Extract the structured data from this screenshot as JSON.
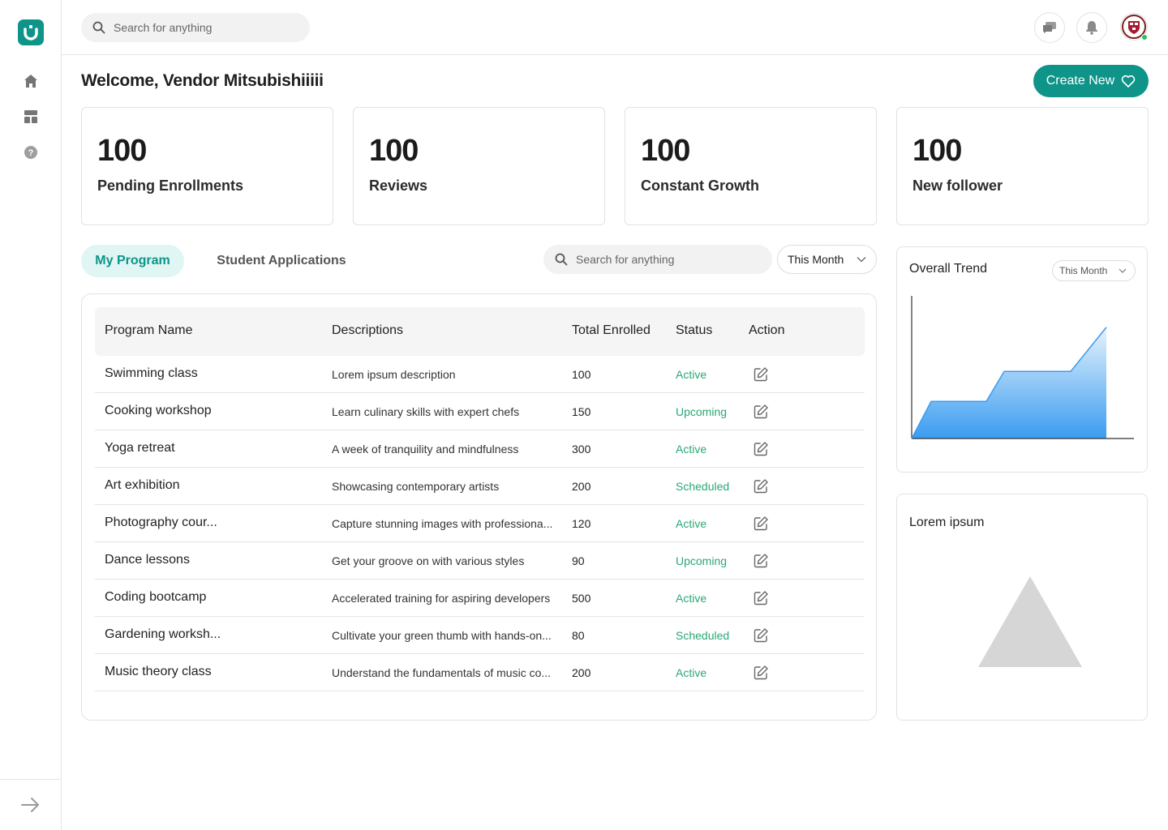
{
  "header": {
    "search_placeholder": "Search for anything"
  },
  "welcome": "Welcome, Vendor Mitsubishiiiii",
  "create_button": "Create New",
  "stats": [
    {
      "value": "100",
      "label": "Pending Enrollments"
    },
    {
      "value": "100",
      "label": "Reviews"
    },
    {
      "value": "100",
      "label": "Constant Growth"
    },
    {
      "value": "100",
      "label": "New follower"
    }
  ],
  "tabs": {
    "active": "My Program",
    "other": "Student Applications"
  },
  "filter": {
    "search_placeholder": "Search for anything",
    "period": "This Month"
  },
  "table": {
    "headers": [
      "Program Name",
      "Descriptions",
      "Total Enrolled",
      "Status",
      "Action"
    ],
    "rows": [
      {
        "name": "Swimming class",
        "desc": "Lorem ipsum description",
        "total": "100",
        "status": "Active"
      },
      {
        "name": "Cooking workshop",
        "desc": "Learn culinary skills with expert chefs",
        "total": "150",
        "status": "Upcoming"
      },
      {
        "name": "Yoga retreat",
        "desc": "A week of tranquility and mindfulness",
        "total": "300",
        "status": "Active"
      },
      {
        "name": "Art exhibition",
        "desc": "Showcasing contemporary artists",
        "total": "200",
        "status": "Scheduled"
      },
      {
        "name": "Photography cour...",
        "desc": "Capture stunning images with professiona...",
        "total": "120",
        "status": "Active"
      },
      {
        "name": "Dance lessons",
        "desc": "Get your groove on with various styles",
        "total": "90",
        "status": "Upcoming"
      },
      {
        "name": "Coding bootcamp",
        "desc": "Accelerated training for aspiring developers",
        "total": "500",
        "status": "Active"
      },
      {
        "name": "Gardening worksh...",
        "desc": "Cultivate your green thumb with hands-on...",
        "total": "80",
        "status": "Scheduled"
      },
      {
        "name": "Music theory class",
        "desc": "Understand the fundamentals of music co...",
        "total": "200",
        "status": "Active"
      }
    ]
  },
  "trend": {
    "title": "Overall Trend",
    "period": "This Month"
  },
  "lorem": {
    "title": "Lorem ipsum"
  },
  "colors": {
    "brand": "#0e9488",
    "status_text": "#2aa876",
    "chart_fill_top": "#cfe6fb",
    "chart_fill_bottom": "#3a9cf0"
  },
  "chart_data": {
    "type": "area",
    "title": "Overall Trend",
    "x": [
      0,
      1,
      2,
      3,
      4,
      5,
      6
    ],
    "values": [
      0,
      26,
      26,
      47,
      47,
      78,
      78
    ],
    "xlabel": "",
    "ylabel": "",
    "ylim": [
      0,
      100
    ],
    "grid": false
  }
}
